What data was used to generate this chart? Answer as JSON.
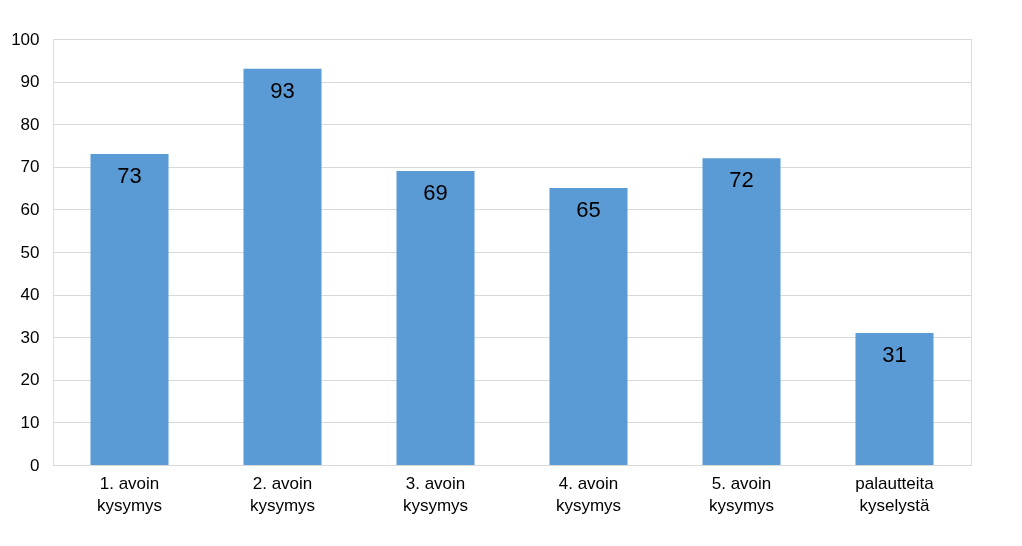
{
  "chart_data": {
    "type": "bar",
    "categories": [
      "1. avoin kysymys",
      "2. avoin kysymys",
      "3. avoin kysymys",
      "4. avoin kysymys",
      "5. avoin kysymys",
      "palautteita kyselystä"
    ],
    "values": [
      73,
      93,
      69,
      65,
      72,
      31
    ],
    "color": "#5b9bd5",
    "ylim": [
      0,
      100
    ],
    "yticks": [
      0,
      10,
      20,
      30,
      40,
      50,
      60,
      70,
      80,
      90,
      100
    ],
    "grid": "y",
    "data_labels": true
  }
}
